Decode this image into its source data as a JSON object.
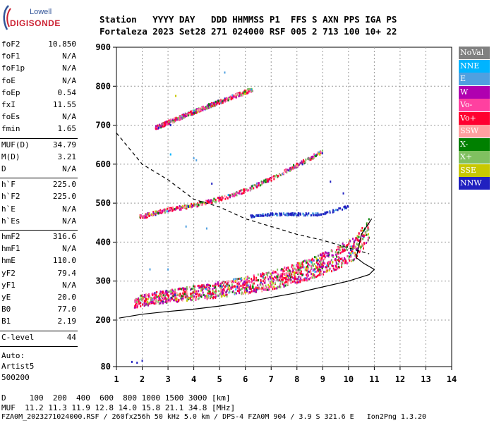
{
  "logo": {
    "line1": "Lowell",
    "line2": "DIGISONDE"
  },
  "header": {
    "labels": "Station   YYYY DAY   DDD HHMMSS P1  FFS S AXN PPS IGA PS",
    "values": "Fortaleza 2023 Set28 271 024000 RSF 005 2 713 100 10+ 22"
  },
  "params": {
    "group1": [
      {
        "name": "foF2",
        "value": "10.850"
      },
      {
        "name": "foF1",
        "value": "N/A"
      },
      {
        "name": "foF1p",
        "value": "N/A"
      },
      {
        "name": "foE",
        "value": "N/A"
      },
      {
        "name": "foEp",
        "value": "0.54"
      },
      {
        "name": "fxI",
        "value": "11.55"
      },
      {
        "name": "foEs",
        "value": "N/A"
      },
      {
        "name": "fmin",
        "value": "1.65"
      }
    ],
    "group2": [
      {
        "name": "MUF(D)",
        "value": "34.79"
      },
      {
        "name": "M(D)",
        "value": "3.21"
      },
      {
        "name": "D",
        "value": "N/A"
      }
    ],
    "group3": [
      {
        "name": "h`F",
        "value": "225.0"
      },
      {
        "name": "h`F2",
        "value": "225.0"
      },
      {
        "name": "h`E",
        "value": "N/A"
      },
      {
        "name": "h`Es",
        "value": "N/A"
      }
    ],
    "group4": [
      {
        "name": "hmF2",
        "value": "316.6"
      },
      {
        "name": "hmF1",
        "value": "N/A"
      },
      {
        "name": "hmE",
        "value": "110.0"
      },
      {
        "name": "yF2",
        "value": "79.4"
      },
      {
        "name": "yF1",
        "value": "N/A"
      },
      {
        "name": "yE",
        "value": "20.0"
      },
      {
        "name": "B0",
        "value": "77.0"
      },
      {
        "name": "B1",
        "value": "2.19"
      }
    ],
    "clevel": {
      "name": "C-level",
      "value": "44"
    },
    "auto": [
      "Auto:",
      "Artist5",
      "500200"
    ]
  },
  "legend": [
    {
      "label": "NoVal",
      "color": "#808080"
    },
    {
      "label": "NNE",
      "color": "#00b4ff"
    },
    {
      "label": "E",
      "color": "#50a0e0"
    },
    {
      "label": "W",
      "color": "#b000b0"
    },
    {
      "label": "Vo-",
      "color": "#ff40a0"
    },
    {
      "label": "Vo+",
      "color": "#ff0030"
    },
    {
      "label": "SSW",
      "color": "#ffa0a0"
    },
    {
      "label": "X-",
      "color": "#008000"
    },
    {
      "label": "X+",
      "color": "#80c060"
    },
    {
      "label": "SSE",
      "color": "#c8c800"
    },
    {
      "label": "NNW",
      "color": "#2020c0"
    }
  ],
  "footer": {
    "line1": "D     100  200  400  600  800 1000 1500 3000 [km]",
    "line2": "MUF  11.2 11.3 11.9 12.8 14.0 15.8 21.1 34.8 [MHz]",
    "line3": "FZA0M_2023271024000.RSF / 260fx256h 50 kHz 5.0 km / DPS-4 FZA0M 904 / 3.9 S 321.6 E   Ion2Png 1.3.20"
  },
  "chart_data": {
    "type": "scatter",
    "xlim": [
      1,
      14
    ],
    "ylim": [
      80,
      900
    ],
    "xticks": [
      "1",
      "2",
      "3",
      "4",
      "5",
      "6",
      "7",
      "8",
      "9",
      "10",
      "11",
      "12",
      "13",
      "14"
    ],
    "yticks": [
      "80",
      "200",
      "300",
      "400",
      "500",
      "600",
      "700",
      "800",
      "900"
    ],
    "grid": true,
    "traces": [
      {
        "name": "F2 echo trace",
        "points": [
          [
            1.7,
            240
          ],
          [
            2.5,
            250
          ],
          [
            3.5,
            258
          ],
          [
            4.5,
            265
          ],
          [
            5.5,
            275
          ],
          [
            6.5,
            285
          ],
          [
            7.5,
            300
          ],
          [
            8.5,
            320
          ],
          [
            9.5,
            345
          ],
          [
            10.3,
            375
          ],
          [
            10.8,
            420
          ]
        ]
      },
      {
        "name": "second hop trace",
        "points": [
          [
            1.9,
            462
          ],
          [
            3,
            480
          ],
          [
            4,
            492
          ],
          [
            5,
            508
          ],
          [
            6,
            530
          ],
          [
            7,
            560
          ],
          [
            8,
            595
          ],
          [
            9,
            630
          ]
        ]
      },
      {
        "name": "third hop trace",
        "points": [
          [
            2.5,
            690
          ],
          [
            3.5,
            718
          ],
          [
            4.5,
            745
          ],
          [
            5.5,
            770
          ],
          [
            6.3,
            790
          ]
        ]
      },
      {
        "name": "oblique echoes",
        "points": [
          [
            6.2,
            465
          ],
          [
            7,
            470
          ],
          [
            8,
            470
          ],
          [
            9,
            470
          ],
          [
            9.5,
            480
          ],
          [
            10,
            490
          ]
        ]
      }
    ],
    "profile_curve": [
      [
        1.1,
        205
      ],
      [
        2,
        215
      ],
      [
        3,
        222
      ],
      [
        4,
        228
      ],
      [
        5,
        236
      ],
      [
        6,
        246
      ],
      [
        7,
        258
      ],
      [
        8,
        270
      ],
      [
        9,
        285
      ],
      [
        10,
        300
      ],
      [
        10.8,
        316.6
      ],
      [
        11,
        330
      ],
      [
        10.6,
        345
      ],
      [
        10.3,
        360
      ],
      [
        10.5,
        420
      ],
      [
        10.9,
        460
      ]
    ],
    "muf_curve": [
      [
        1,
        680
      ],
      [
        1.5,
        640
      ],
      [
        2,
        600
      ],
      [
        3,
        560
      ],
      [
        4,
        510
      ],
      [
        5,
        490
      ],
      [
        6,
        460
      ],
      [
        7,
        440
      ],
      [
        8,
        420
      ],
      [
        9,
        405
      ],
      [
        10,
        385
      ],
      [
        10.8,
        370
      ]
    ]
  }
}
